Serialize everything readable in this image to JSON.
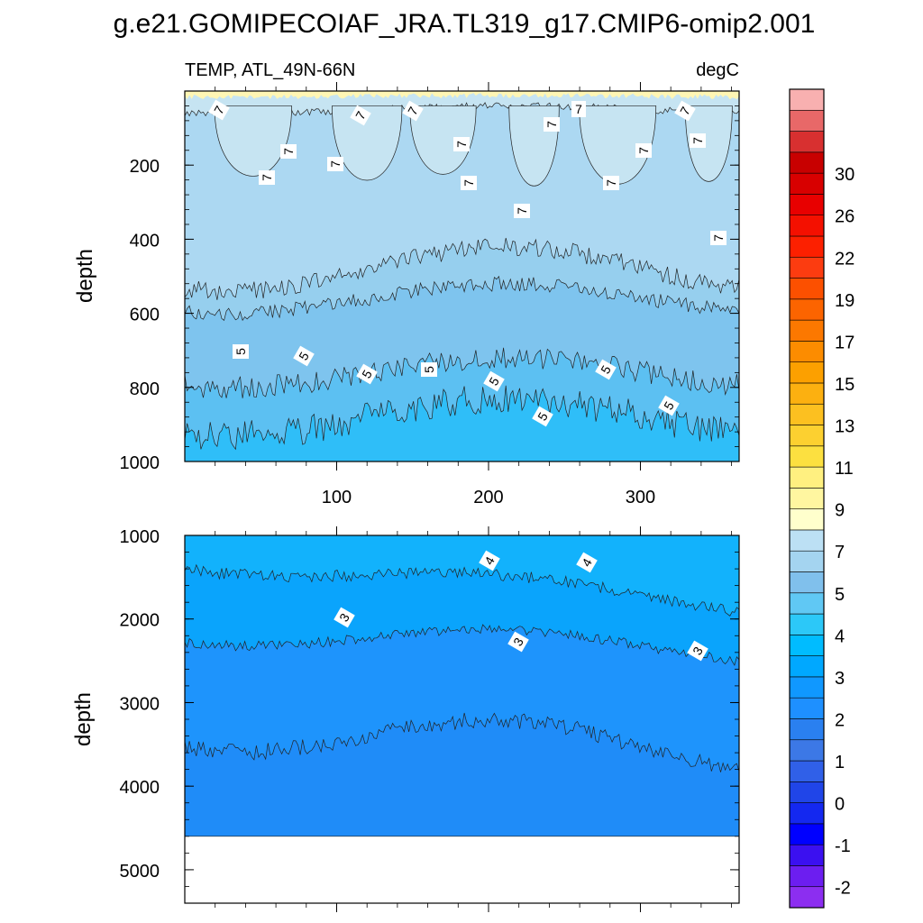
{
  "title": "g.e21.GOMIPECOIAF_JRA.TL319_g17.CMIP6-omip2.001",
  "chart_data": [
    {
      "type": "contour",
      "panel": "upper",
      "subtitle_left": "TEMP, ATL_49N-66N",
      "subtitle_right": "degC",
      "xlabel": "",
      "ylabel": "depth",
      "xlim": [
        0,
        365
      ],
      "ylim": [
        1000,
        0
      ],
      "x_ticks": [
        "100",
        "200",
        "300"
      ],
      "y_ticks": [
        "200",
        "400",
        "600",
        "800",
        "1000"
      ],
      "contour_labels": [
        "7",
        "7",
        "7",
        "7",
        "7",
        "7",
        "7",
        "7",
        "7",
        "7",
        "7",
        "7",
        "7",
        "7",
        "7",
        "7",
        "5",
        "5",
        "5",
        "5",
        "5",
        "5",
        "5",
        "5"
      ]
    },
    {
      "type": "contour",
      "panel": "lower",
      "xlabel": "",
      "ylabel": "depth",
      "xlim": [
        0,
        365
      ],
      "ylim": [
        5400,
        1000
      ],
      "y_ticks": [
        "1000",
        "2000",
        "3000",
        "4000",
        "5000"
      ],
      "bottom_depth": 4600,
      "contour_labels": [
        "4",
        "4",
        "3",
        "3",
        "3"
      ]
    }
  ],
  "colorbar": {
    "colors": [
      "#8c2ef0",
      "#6c1ef0",
      "#3b10f0",
      "#0000ff",
      "#1428f0",
      "#2045e8",
      "#3060e8",
      "#3c78e6",
      "#2a80f0",
      "#1e90ff",
      "#1098ff",
      "#00a8ff",
      "#00bcff",
      "#2cc8f8",
      "#60c8f4",
      "#80c0ec",
      "#a4d4f0",
      "#bce0f4",
      "#ffffcc",
      "#fff6a0",
      "#fff080",
      "#fce040",
      "#fcd030",
      "#fcc020",
      "#fcb010",
      "#fca000",
      "#fc8c00",
      "#fc7800",
      "#fc6400",
      "#fc5000",
      "#fc3c10",
      "#fc2000",
      "#f41000",
      "#e80000",
      "#d80000",
      "#c80000",
      "#d83030",
      "#e86868",
      "#f8b0b0"
    ],
    "labels": [
      "-2",
      "-1",
      "0",
      "1",
      "2",
      "3",
      "4",
      "5",
      "7",
      "9",
      "11",
      "13",
      "15",
      "17",
      "19",
      "22",
      "26",
      "30"
    ]
  },
  "fill_colors": {
    "c9plus": "#fff6b4",
    "c7_9": "#c6e4f2",
    "c6_7": "#acd8f2",
    "c55_6": "#96cfee",
    "c5_55": "#7ec4ee",
    "c45_5": "#5cc0f2",
    "c4_45": "#2fbef8",
    "c35_4": "#12b2fc",
    "c3_35": "#0aa4fc",
    "c25_3": "#1e94fc",
    "c2_25": "#1f8cf8",
    "c15_2": "#2a7ae8"
  }
}
